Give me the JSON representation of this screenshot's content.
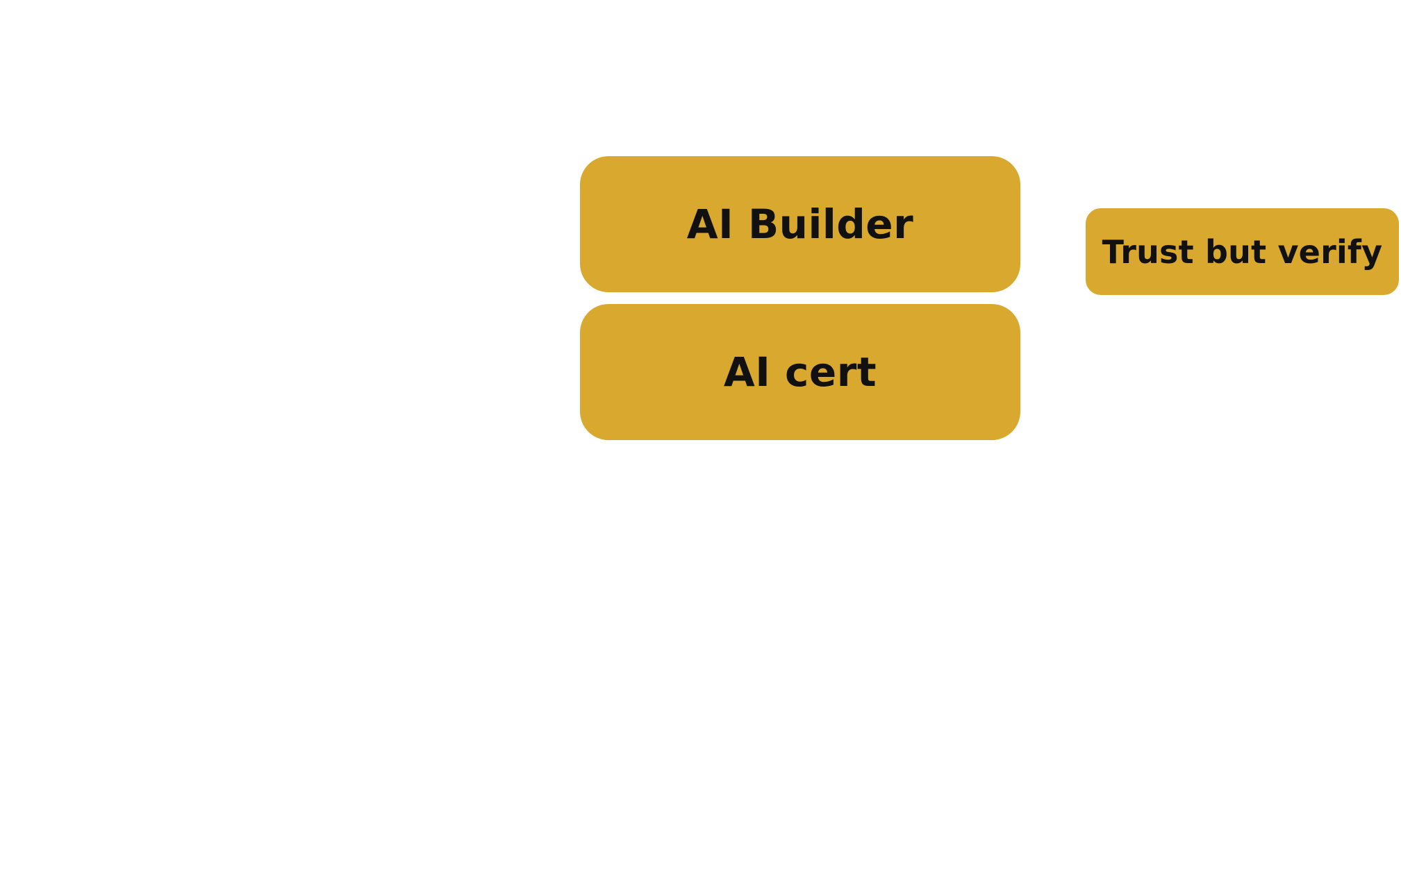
{
  "theme": {
    "background": "#ffffff",
    "node_fill": "#d9a82e",
    "text_color": "#111111"
  },
  "nodes": {
    "ai_builder": "AI Builder",
    "ai_cert": "AI cert",
    "trust_but_verify": "Trust but verify"
  }
}
